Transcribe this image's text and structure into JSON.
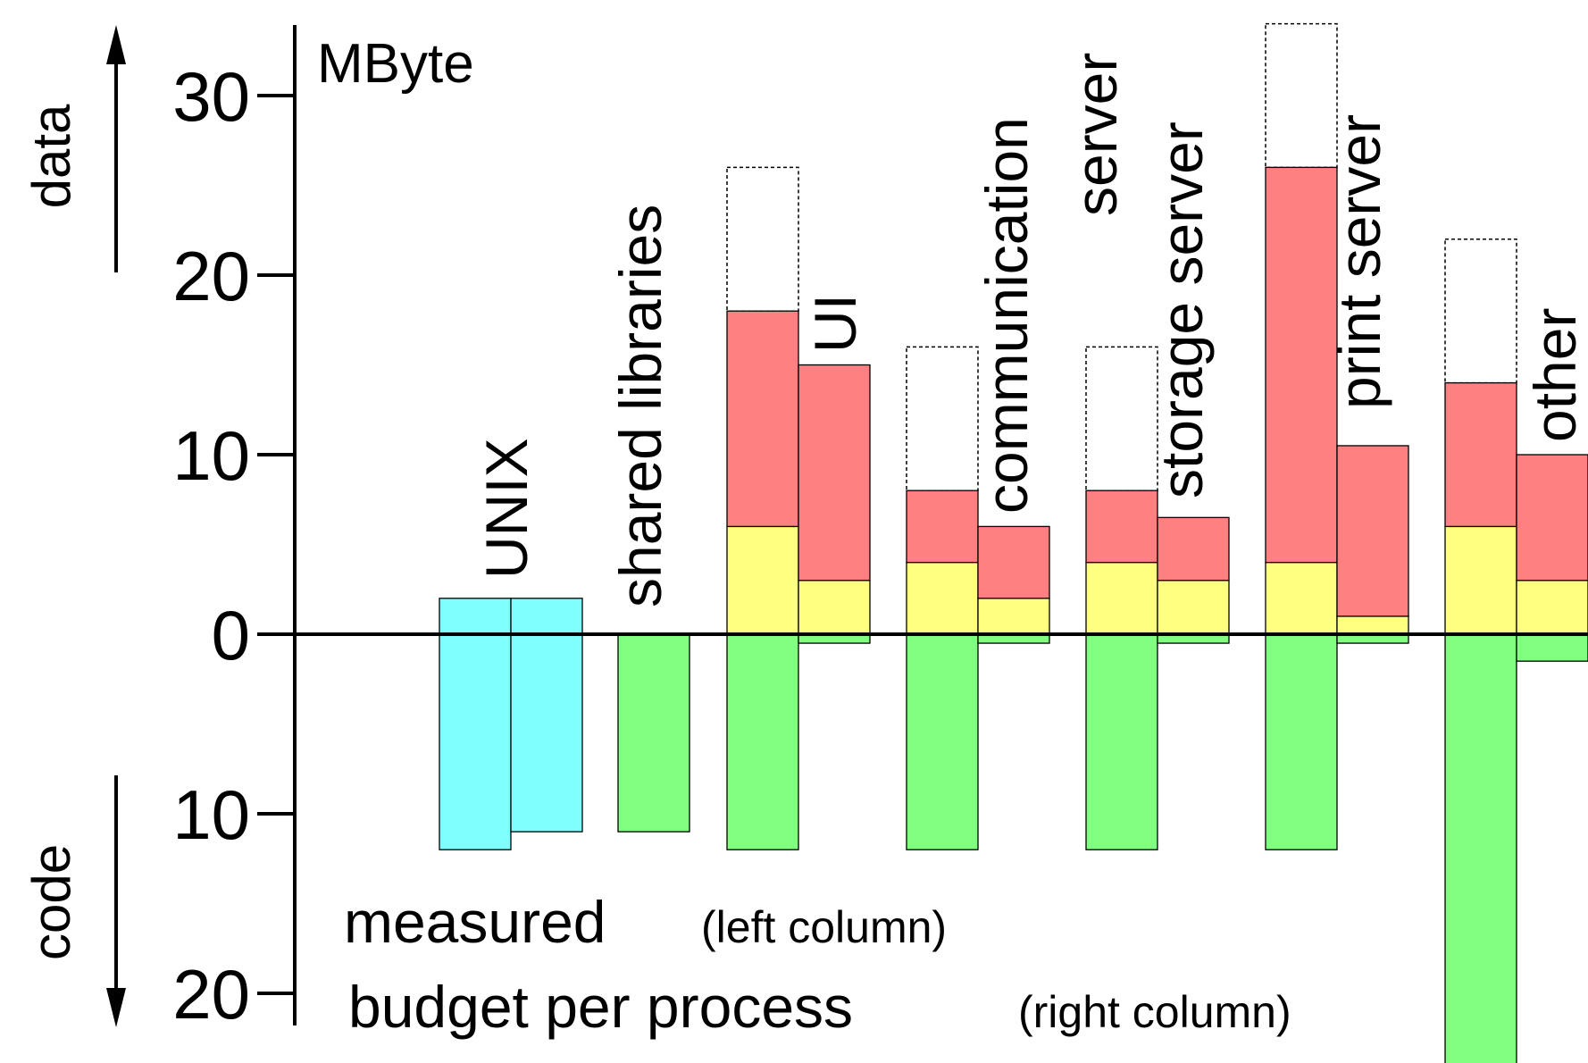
{
  "chart_data": {
    "type": "bar",
    "unit_label": "MByte",
    "up_label": "data",
    "down_label": "code",
    "y_ticks": [
      {
        "value": 30,
        "label": "30"
      },
      {
        "value": 20,
        "label": "20"
      },
      {
        "value": 10,
        "label": "10"
      },
      {
        "value": 0,
        "label": "0"
      },
      {
        "value": -10,
        "label": "10"
      },
      {
        "value": -20,
        "label": "20"
      }
    ],
    "ylim": [
      -24,
      35
    ],
    "legend": {
      "measured": "measured",
      "measured_note": "(left column)",
      "budget": "budget per process",
      "budget_note": "(right column)"
    },
    "colors": {
      "unix": "#80ffff",
      "code": "#80ff80",
      "yellow_data": "#ffff80",
      "red_data": "#ff8080",
      "outline": "#000000"
    },
    "categories": [
      {
        "name": "UNIX",
        "bars": [
          {
            "column": "measured",
            "segments": [
              {
                "from": -12,
                "to": 2,
                "color": "unix"
              }
            ]
          },
          {
            "column": "budget",
            "segments": [
              {
                "from": -11,
                "to": 2,
                "color": "unix"
              }
            ]
          }
        ]
      },
      {
        "name": "shared libraries",
        "bars": [
          {
            "column": "measured",
            "segments": [
              {
                "from": -11,
                "to": 0,
                "color": "code"
              }
            ]
          }
        ]
      },
      {
        "name": "UI",
        "bars": [
          {
            "column": "measured",
            "segments": [
              {
                "from": -12,
                "to": 0,
                "color": "code"
              },
              {
                "from": 0,
                "to": 6,
                "color": "yellow_data"
              },
              {
                "from": 6,
                "to": 18,
                "color": "red_data"
              }
            ],
            "dashed_total": 26
          },
          {
            "column": "budget",
            "segments": [
              {
                "from": -0.5,
                "to": 0,
                "color": "code"
              },
              {
                "from": 0,
                "to": 3,
                "color": "yellow_data"
              },
              {
                "from": 3,
                "to": 15,
                "color": "red_data"
              }
            ]
          }
        ]
      },
      {
        "name": "communication server",
        "bars": [
          {
            "column": "measured",
            "segments": [
              {
                "from": -12,
                "to": 0,
                "color": "code"
              },
              {
                "from": 0,
                "to": 4,
                "color": "yellow_data"
              },
              {
                "from": 4,
                "to": 8,
                "color": "red_data"
              }
            ],
            "dashed_total": 16
          },
          {
            "column": "budget",
            "segments": [
              {
                "from": -0.5,
                "to": 0,
                "color": "code"
              },
              {
                "from": 0,
                "to": 2,
                "color": "yellow_data"
              },
              {
                "from": 2,
                "to": 6,
                "color": "red_data"
              }
            ]
          }
        ]
      },
      {
        "name": "storage server",
        "bars": [
          {
            "column": "measured",
            "segments": [
              {
                "from": -12,
                "to": 0,
                "color": "code"
              },
              {
                "from": 0,
                "to": 4,
                "color": "yellow_data"
              },
              {
                "from": 4,
                "to": 8,
                "color": "red_data"
              }
            ],
            "dashed_total": 16
          },
          {
            "column": "budget",
            "segments": [
              {
                "from": -0.5,
                "to": 0,
                "color": "code"
              },
              {
                "from": 0,
                "to": 3,
                "color": "yellow_data"
              },
              {
                "from": 3,
                "to": 6.5,
                "color": "red_data"
              }
            ]
          }
        ]
      },
      {
        "name": "print server",
        "bars": [
          {
            "column": "measured",
            "segments": [
              {
                "from": -12,
                "to": 0,
                "color": "code"
              },
              {
                "from": 0,
                "to": 4,
                "color": "yellow_data"
              },
              {
                "from": 4,
                "to": 26,
                "color": "red_data"
              }
            ],
            "dashed_total": 34
          },
          {
            "column": "budget",
            "segments": [
              {
                "from": -0.5,
                "to": 0,
                "color": "code"
              },
              {
                "from": 0,
                "to": 1,
                "color": "yellow_data"
              },
              {
                "from": 1,
                "to": 10.5,
                "color": "red_data"
              }
            ]
          }
        ]
      },
      {
        "name": "other",
        "bars": [
          {
            "column": "measured",
            "segments": [
              {
                "from": -24,
                "to": 0,
                "color": "code"
              },
              {
                "from": 0,
                "to": 6,
                "color": "yellow_data"
              },
              {
                "from": 6,
                "to": 14,
                "color": "red_data"
              }
            ],
            "dashed_total": 22
          },
          {
            "column": "budget",
            "segments": [
              {
                "from": -1.5,
                "to": 0,
                "color": "code"
              },
              {
                "from": 0,
                "to": 3,
                "color": "yellow_data"
              },
              {
                "from": 3,
                "to": 10,
                "color": "red_data"
              }
            ]
          }
        ]
      }
    ]
  }
}
